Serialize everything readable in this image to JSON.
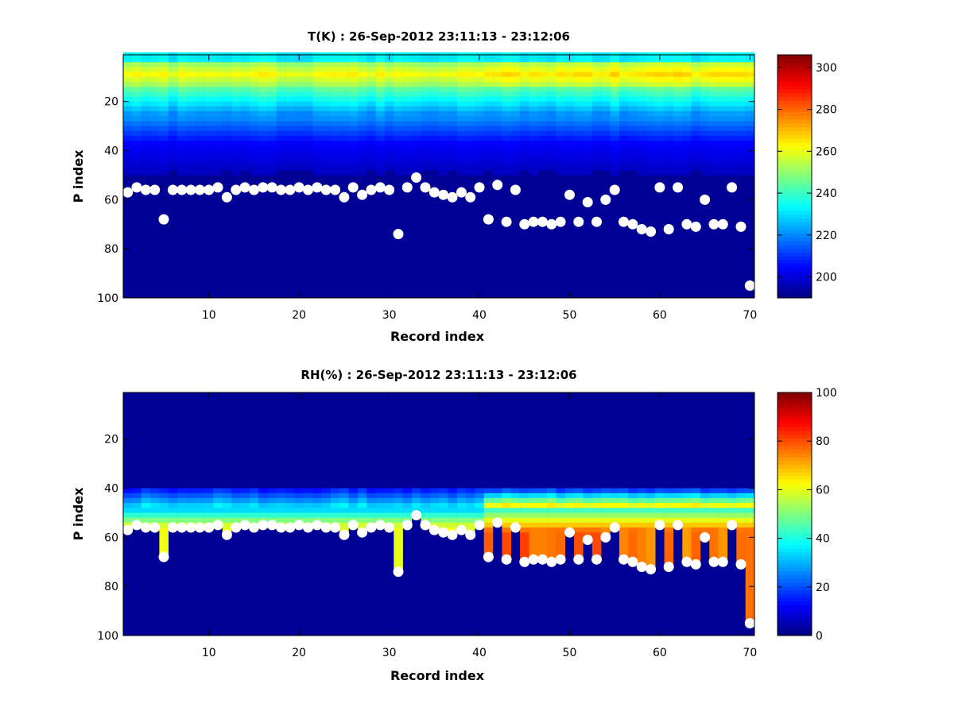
{
  "chart_data": [
    {
      "type": "heatmap",
      "title": "T(K) : 26-Sep-2012 23:11:13 - 23:12:06",
      "xlabel": "Record index",
      "ylabel": "P index",
      "xlim": [
        0.5,
        70.5
      ],
      "ylim": [
        1,
        100
      ],
      "y_reversed": true,
      "xticks": [
        10,
        20,
        30,
        40,
        50,
        60,
        70
      ],
      "yticks": [
        20,
        40,
        60,
        80,
        100
      ],
      "colormap": "jet",
      "colorbar": {
        "min": 190,
        "max": 306,
        "ticks": [
          200,
          220,
          240,
          260,
          280,
          300
        ]
      },
      "description": "Temperature profile per record; warm band near P index 10, cold (dark blue) below surface marker",
      "warm_band_p_index": 10,
      "surface_markers_p_index": [
        57,
        55,
        56,
        56,
        68,
        56,
        56,
        56,
        56,
        56,
        55,
        59,
        56,
        55,
        56,
        55,
        55,
        56,
        56,
        55,
        56,
        55,
        56,
        56,
        59,
        55,
        58,
        56,
        55,
        56,
        74,
        55,
        51,
        55,
        57,
        58,
        59,
        57,
        59,
        55,
        68,
        54,
        69,
        56,
        70,
        69,
        69,
        70,
        69,
        58,
        69,
        61,
        69,
        60,
        56,
        69,
        70,
        72,
        73,
        55,
        72,
        55,
        70,
        71,
        60,
        70,
        70,
        55,
        71,
        95
      ]
    },
    {
      "type": "heatmap",
      "title": "RH(%) : 26-Sep-2012 23:11:13 - 23:12:06",
      "xlabel": "Record index",
      "ylabel": "P index",
      "xlim": [
        0.5,
        70.5
      ],
      "ylim": [
        1,
        100
      ],
      "y_reversed": true,
      "xticks": [
        10,
        20,
        30,
        40,
        50,
        60,
        70
      ],
      "yticks": [
        20,
        40,
        60,
        80,
        100
      ],
      "colormap": "jet",
      "colorbar": {
        "min": 0,
        "max": 100,
        "ticks": [
          0,
          20,
          40,
          60,
          80,
          100
        ]
      },
      "description": "Relative humidity profile per record; moist layer above surface marker, peaking near 60-70%",
      "surface_markers_p_index": [
        57,
        55,
        56,
        56,
        68,
        56,
        56,
        56,
        56,
        56,
        55,
        59,
        56,
        55,
        56,
        55,
        55,
        56,
        56,
        55,
        56,
        55,
        56,
        56,
        59,
        55,
        58,
        56,
        55,
        56,
        74,
        55,
        51,
        55,
        57,
        58,
        59,
        57,
        59,
        55,
        68,
        54,
        69,
        56,
        70,
        69,
        69,
        70,
        69,
        58,
        69,
        61,
        69,
        60,
        56,
        69,
        70,
        72,
        73,
        55,
        72,
        55,
        70,
        71,
        60,
        70,
        70,
        55,
        71,
        95
      ]
    }
  ]
}
